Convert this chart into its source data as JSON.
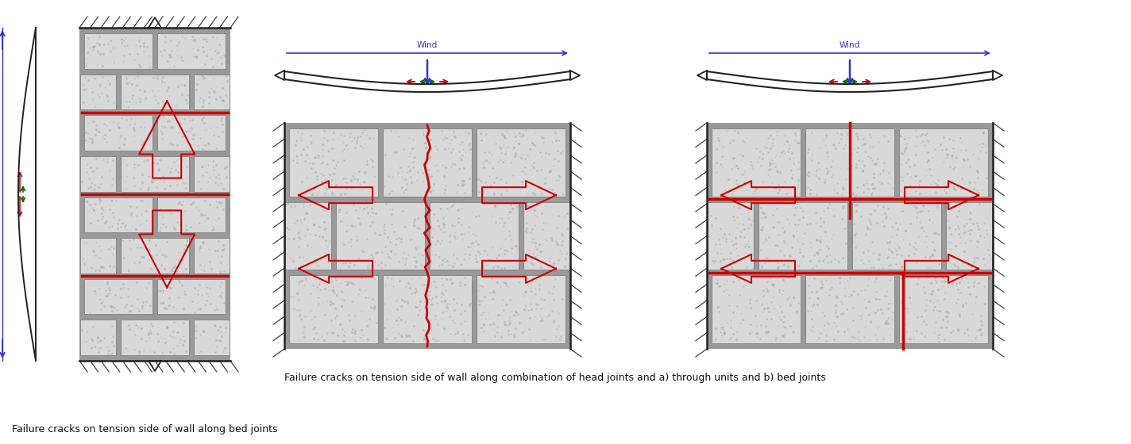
{
  "bg_color": "#ffffff",
  "brick_fc": "#d8d8d8",
  "brick_ec": "#888888",
  "mortar_c": "#999999",
  "crack_c": "#cc0000",
  "blue_c": "#3333cc",
  "green_c": "#006600",
  "dark_c": "#222222",
  "hatch_c": "#444444",
  "label1": "Failure cracks on tension side of wall along bed joints",
  "label2": "Failure cracks on tension side of wall along combination of head joints and a) through units and b) bed joints",
  "wind_label": "Wind",
  "label_fs": 9,
  "wind_fs": 7.5
}
